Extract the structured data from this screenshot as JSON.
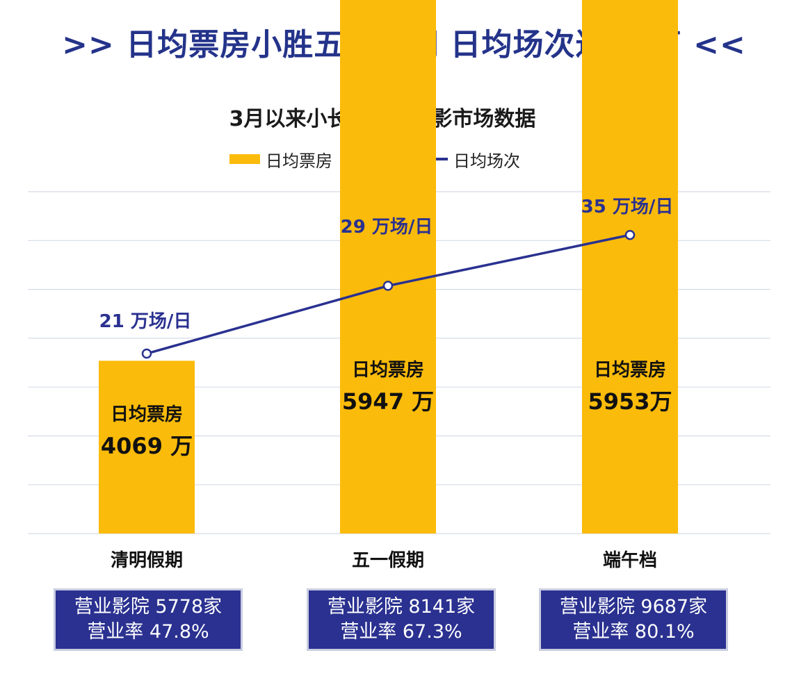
{
  "headline": ">> 日均票房小胜五一假期 日均场次达35万 <<",
  "chart_data": {
    "type": "bar+line",
    "title": "3月以来小长假全国电影市场数据",
    "categories": [
      "清明假期",
      "五一假期",
      "端午档"
    ],
    "series": [
      {
        "name": "日均票房（万）",
        "type": "bar",
        "values": [
          4069,
          5947,
          5953
        ],
        "labels": [
          "日均票房\n4069 万",
          "日均票房\n5947 万",
          "日均票房\n5953万"
        ]
      },
      {
        "name": "日均场次",
        "type": "line",
        "values": [
          21,
          29,
          35
        ],
        "labels": [
          "21 万场/日",
          "29 万场/日",
          "35 万场/日"
        ]
      }
    ],
    "grid": true,
    "legend_position": "top"
  },
  "colors": {
    "headline": "#24338a",
    "bar": "#fbbb0a",
    "line": "#2a3190",
    "grid": "#d5dbe8",
    "box": "#2a3190"
  },
  "info_boxes": [
    {
      "line1": "营业影院 5778家",
      "line2": "营业率 47.8%"
    },
    {
      "line1": "营业影院 8141家",
      "line2": "营业率 67.3%"
    },
    {
      "line1": "营业影院 9687家",
      "line2": "营业率 80.1%"
    }
  ]
}
